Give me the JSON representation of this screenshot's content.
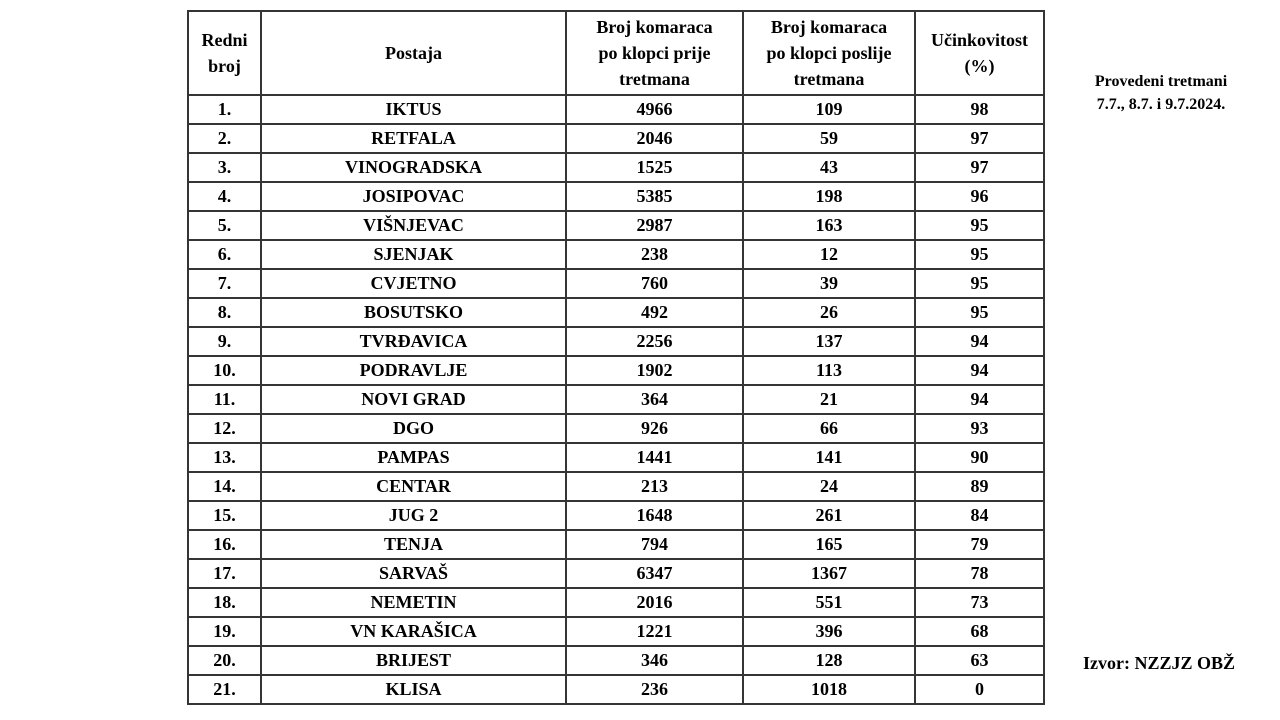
{
  "table": {
    "column_keys": [
      "redni-broj",
      "postaja",
      "prije-tretmana",
      "poslije-tretmana",
      "ucinkovitost"
    ],
    "headers": [
      "Redni\nbroj",
      "Postaja",
      "Broj komaraca\npo klopci prije\ntretmana",
      "Broj komaraca\npo klopci poslije\ntretmana",
      "Učinkovitost\n(%)"
    ],
    "rows": [
      [
        "1.",
        "IKTUS",
        "4966",
        "109",
        "98"
      ],
      [
        "2.",
        "RETFALA",
        "2046",
        "59",
        "97"
      ],
      [
        "3.",
        "VINOGRADSKA",
        "1525",
        "43",
        "97"
      ],
      [
        "4.",
        "JOSIPOVAC",
        "5385",
        "198",
        "96"
      ],
      [
        "5.",
        "VIŠNJEVAC",
        "2987",
        "163",
        "95"
      ],
      [
        "6.",
        "SJENJAK",
        "238",
        "12",
        "95"
      ],
      [
        "7.",
        "CVJETNO",
        "760",
        "39",
        "95"
      ],
      [
        "8.",
        "BOSUTSKO",
        "492",
        "26",
        "95"
      ],
      [
        "9.",
        "TVRĐAVICA",
        "2256",
        "137",
        "94"
      ],
      [
        "10.",
        "PODRAVLJE",
        "1902",
        "113",
        "94"
      ],
      [
        "11.",
        "NOVI GRAD",
        "364",
        "21",
        "94"
      ],
      [
        "12.",
        "DGO",
        "926",
        "66",
        "93"
      ],
      [
        "13.",
        "PAMPAS",
        "1441",
        "141",
        "90"
      ],
      [
        "14.",
        "CENTAR",
        "213",
        "24",
        "89"
      ],
      [
        "15.",
        "JUG 2",
        "1648",
        "261",
        "84"
      ],
      [
        "16.",
        "TENJA",
        "794",
        "165",
        "79"
      ],
      [
        "17.",
        "SARVAŠ",
        "6347",
        "1367",
        "78"
      ],
      [
        "18.",
        "NEMETIN",
        "2016",
        "551",
        "73"
      ],
      [
        "19.",
        "VN KARAŠICA",
        "1221",
        "396",
        "68"
      ],
      [
        "20.",
        "BRIJEST",
        "346",
        "128",
        "63"
      ],
      [
        "21.",
        "KLISA",
        "236",
        "1018",
        "0"
      ]
    ]
  },
  "annotations": {
    "treatment_note_line1": "Provedeni tretmani",
    "treatment_note_line2": "7.7., 8.7. i 9.7.2024.",
    "source": "Izvor: NZZJZ OBŽ"
  },
  "colors": {
    "text": "#000000",
    "border": "#353535",
    "background": "#ffffff"
  }
}
